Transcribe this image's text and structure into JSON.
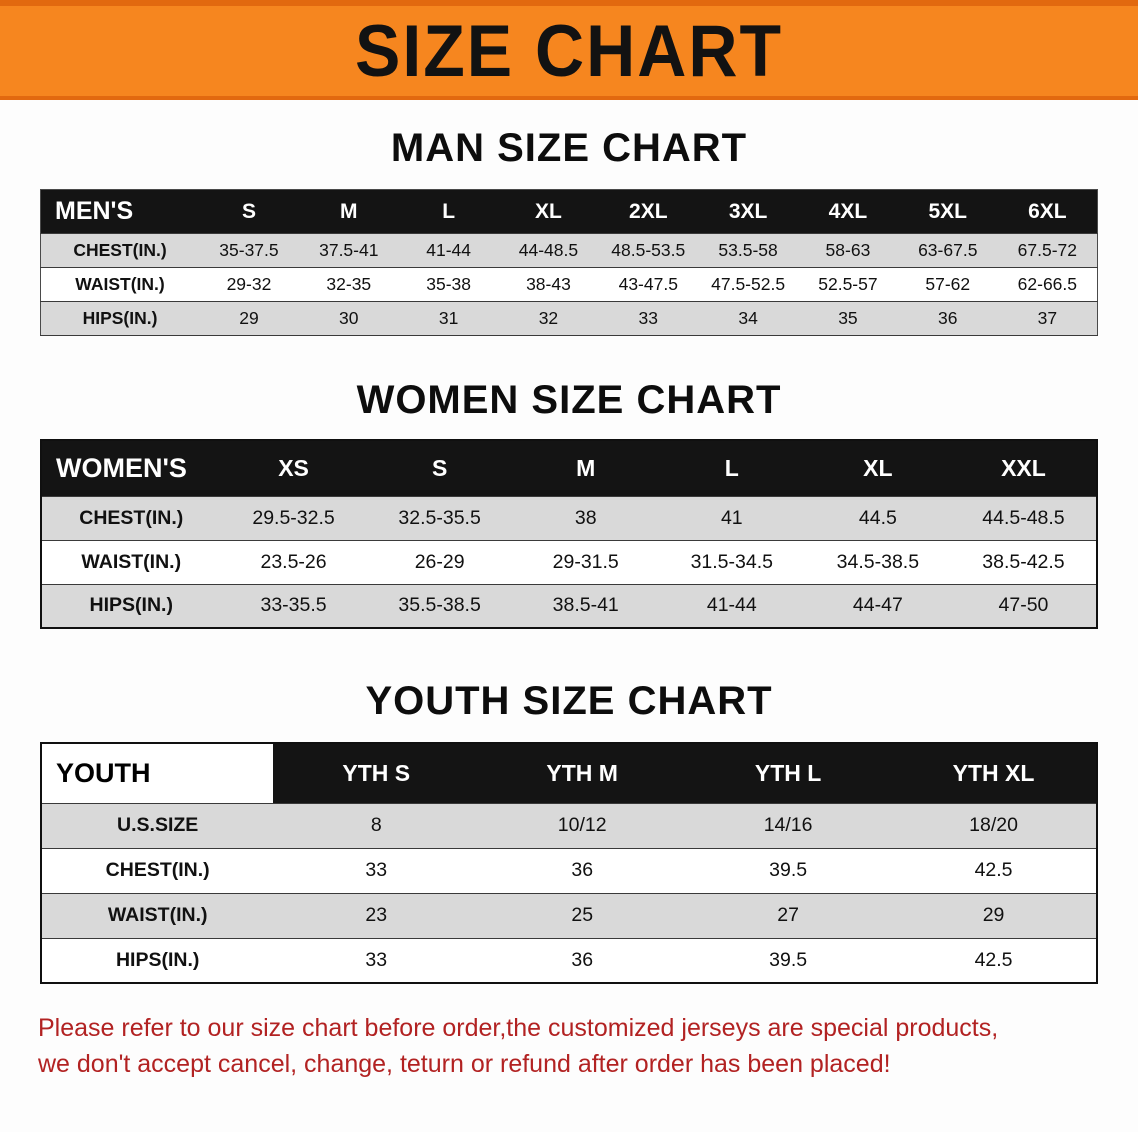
{
  "banner": {
    "title": "SIZE CHART",
    "bg_color": "#f6861f",
    "text_color": "#121212"
  },
  "men": {
    "heading": "MAN SIZE CHART",
    "table": {
      "header": [
        "MEN'S",
        "S",
        "M",
        "L",
        "XL",
        "2XL",
        "3XL",
        "4XL",
        "5XL",
        "6XL"
      ],
      "rows": [
        {
          "label": "CHEST(IN.)",
          "values": [
            "35-37.5",
            "37.5-41",
            "41-44",
            "44-48.5",
            "48.5-53.5",
            "53.5-58",
            "58-63",
            "63-67.5",
            "67.5-72"
          ]
        },
        {
          "label": "WAIST(IN.)",
          "values": [
            "29-32",
            "32-35",
            "35-38",
            "38-43",
            "43-47.5",
            "47.5-52.5",
            "52.5-57",
            "57-62",
            "62-66.5"
          ]
        },
        {
          "label": "HIPS(IN.)",
          "values": [
            "29",
            "30",
            "31",
            "32",
            "33",
            "34",
            "35",
            "36",
            "37"
          ]
        }
      ]
    }
  },
  "women": {
    "heading": "WOMEN SIZE CHART",
    "table": {
      "header": [
        "WOMEN'S",
        "XS",
        "S",
        "M",
        "L",
        "XL",
        "XXL"
      ],
      "rows": [
        {
          "label": "CHEST(IN.)",
          "values": [
            "29.5-32.5",
            "32.5-35.5",
            "38",
            "41",
            "44.5",
            "44.5-48.5"
          ]
        },
        {
          "label": "WAIST(IN.)",
          "values": [
            "23.5-26",
            "26-29",
            "29-31.5",
            "31.5-34.5",
            "34.5-38.5",
            "38.5-42.5"
          ]
        },
        {
          "label": "HIPS(IN.)",
          "values": [
            "33-35.5",
            "35.5-38.5",
            "38.5-41",
            "41-44",
            "44-47",
            "47-50"
          ]
        }
      ]
    }
  },
  "youth": {
    "heading": "YOUTH SIZE CHART",
    "table": {
      "header": [
        "YOUTH",
        "YTH S",
        "YTH M",
        "YTH L",
        "YTH XL"
      ],
      "rows": [
        {
          "label": "U.S.SIZE",
          "values": [
            "8",
            "10/12",
            "14/16",
            "18/20"
          ]
        },
        {
          "label": "CHEST(IN.)",
          "values": [
            "33",
            "36",
            "39.5",
            "42.5"
          ]
        },
        {
          "label": "WAIST(IN.)",
          "values": [
            "23",
            "25",
            "27",
            "29"
          ]
        },
        {
          "label": "HIPS(IN.)",
          "values": [
            "33",
            "36",
            "39.5",
            "42.5"
          ]
        }
      ]
    }
  },
  "footer": {
    "line1": "Please refer to our size chart before order,the customized jerseys are special products,",
    "line2": "we don't accept cancel, change, teturn or refund after order has been placed!",
    "text_color": "#b22222"
  }
}
